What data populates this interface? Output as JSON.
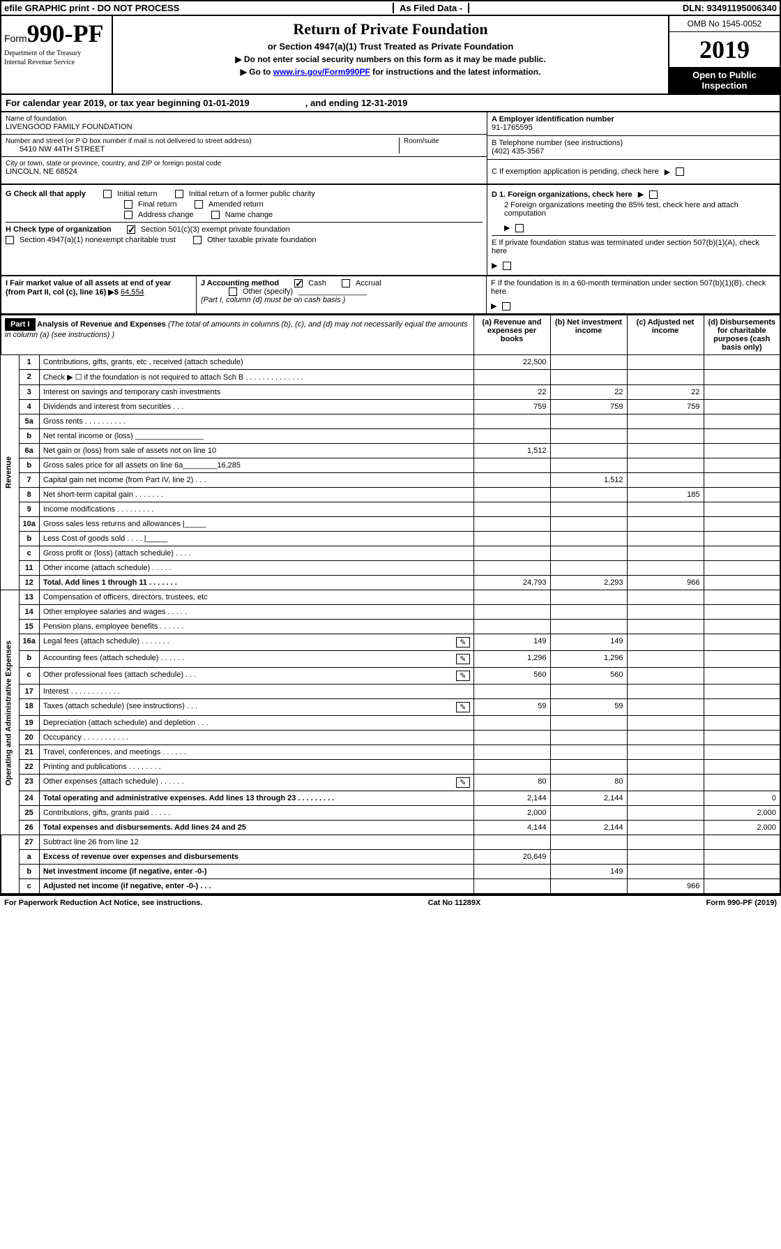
{
  "topbar": {
    "efile": "efile GRAPHIC print - DO NOT PROCESS",
    "filed": "As Filed Data -",
    "dln": "DLN: 93491195006340"
  },
  "header": {
    "form_prefix": "Form",
    "form_number": "990-PF",
    "dept1": "Department of the Treasury",
    "dept2": "Internal Revenue Service",
    "title": "Return of Private Foundation",
    "subtitle": "or Section 4947(a)(1) Trust Treated as Private Foundation",
    "inst1": "▶ Do not enter social security numbers on this form as it may be made public.",
    "inst2_pre": "▶ Go to ",
    "inst2_link": "www.irs.gov/Form990PF",
    "inst2_post": " for instructions and the latest information.",
    "omb": "OMB No 1545-0052",
    "year": "2019",
    "open_public": "Open to Public Inspection"
  },
  "calendar": {
    "text": "For calendar year 2019, or tax year beginning 01-01-2019",
    "end": ", and ending 12-31-2019"
  },
  "entity": {
    "name_label": "Name of foundation",
    "name": "LIVENGOOD FAMILY FOUNDATION",
    "street_label": "Number and street (or P O  box number if mail is not delivered to street address)",
    "room_label": "Room/suite",
    "street": "5410 NW 44TH STREET",
    "city_label": "City or town, state or province, country, and ZIP or foreign postal code",
    "city": "LINCOLN, NE  68524"
  },
  "right": {
    "a_label": "A Employer identification number",
    "a_val": "91-1765595",
    "b_label": "B Telephone number (see instructions)",
    "b_val": "(402) 435-3567",
    "c_label": "C If exemption application is pending, check here",
    "d1": "D 1. Foreign organizations, check here",
    "d2": "2 Foreign organizations meeting the 85% test, check here and attach computation",
    "e": "E  If private foundation status was terminated under section 507(b)(1)(A), check here",
    "f": "F  If the foundation is in a 60-month termination under section 507(b)(1)(B), check here"
  },
  "g": {
    "label": "G Check all that apply",
    "initial": "Initial return",
    "initial_former": "Initial return of a former public charity",
    "final": "Final return",
    "amended": "Amended return",
    "address": "Address change",
    "name": "Name change"
  },
  "h": {
    "label": "H Check type of organization",
    "sec501": "Section 501(c)(3) exempt private foundation",
    "sec4947": "Section 4947(a)(1) nonexempt charitable trust",
    "other": "Other taxable private foundation"
  },
  "i": {
    "label": "I Fair market value of all assets at end of year (from Part II, col  (c), line 16) ▶$",
    "val": "64,554"
  },
  "j": {
    "label": "J Accounting method",
    "cash": "Cash",
    "accrual": "Accrual",
    "other": "Other (specify)",
    "note": "(Part I, column (d) must be on cash basis )"
  },
  "part1": {
    "label": "Part I",
    "title": "Analysis of Revenue and Expenses",
    "title_note": "(The total of amounts in columns (b), (c), and (d) may not necessarily equal the amounts in column (a) (see instructions) )",
    "col_a": "(a) Revenue and expenses per books",
    "col_b": "(b) Net investment income",
    "col_c": "(c) Adjusted net income",
    "col_d": "(d) Disbursements for charitable purposes (cash basis only)",
    "revenue_label": "Revenue",
    "expenses_label": "Operating and Administrative Expenses",
    "rows": [
      {
        "n": "1",
        "d": "Contributions, gifts, grants, etc , received (attach schedule)",
        "a": "22,500",
        "b": "",
        "c": "",
        "dd": ""
      },
      {
        "n": "2",
        "d": "Check ▶ ☐ if the foundation is not required to attach Sch  B    .  .  .  .  .  .  .  .  .  .  .  .  .  .",
        "a": "",
        "b": "",
        "c": "",
        "dd": ""
      },
      {
        "n": "3",
        "d": "Interest on savings and temporary cash investments",
        "a": "22",
        "b": "22",
        "c": "22",
        "dd": ""
      },
      {
        "n": "4",
        "d": "Dividends and interest from securities   .  .  .",
        "a": "759",
        "b": "759",
        "c": "759",
        "dd": ""
      },
      {
        "n": "5a",
        "d": "Gross rents    .  .  .  .  .  .  .  .  .  .",
        "a": "",
        "b": "",
        "c": "",
        "dd": ""
      },
      {
        "n": "b",
        "d": "Net rental income or (loss)  ________________",
        "a": "",
        "b": "",
        "c": "",
        "dd": ""
      },
      {
        "n": "6a",
        "d": "Net gain or (loss) from sale of assets not on line 10",
        "a": "1,512",
        "b": "",
        "c": "",
        "dd": ""
      },
      {
        "n": "b",
        "d": "Gross sales price for all assets on line 6a________16,285",
        "a": "",
        "b": "",
        "c": "",
        "dd": ""
      },
      {
        "n": "7",
        "d": "Capital gain net income (from Part IV, line 2)  .  .  .",
        "a": "",
        "b": "1,512",
        "c": "",
        "dd": ""
      },
      {
        "n": "8",
        "d": "Net short-term capital gain  .  .  .  .  .  .  .",
        "a": "",
        "b": "",
        "c": "185",
        "dd": ""
      },
      {
        "n": "9",
        "d": "Income modifications .  .  .  .  .  .  .  .  .",
        "a": "",
        "b": "",
        "c": "",
        "dd": ""
      },
      {
        "n": "10a",
        "d": "Gross sales less returns and allowances |_____",
        "a": "",
        "b": "",
        "c": "",
        "dd": ""
      },
      {
        "n": "b",
        "d": "Less  Cost of goods sold   .  .  .  .  |_____",
        "a": "",
        "b": "",
        "c": "",
        "dd": ""
      },
      {
        "n": "c",
        "d": "Gross profit or (loss) (attach schedule)   .  .  .  .",
        "a": "",
        "b": "",
        "c": "",
        "dd": ""
      },
      {
        "n": "11",
        "d": "Other income (attach schedule)   .  .  .  .  .",
        "a": "",
        "b": "",
        "c": "",
        "dd": ""
      },
      {
        "n": "12",
        "d": "Total. Add lines 1 through 11  .  .  .  .  .  .  .",
        "a": "24,793",
        "b": "2,293",
        "c": "966",
        "dd": "",
        "bold": true
      }
    ],
    "exp_rows": [
      {
        "n": "13",
        "d": "Compensation of officers, directors, trustees, etc",
        "a": "",
        "b": "",
        "c": "",
        "dd": ""
      },
      {
        "n": "14",
        "d": "Other employee salaries and wages   .  .  .  .  .",
        "a": "",
        "b": "",
        "c": "",
        "dd": ""
      },
      {
        "n": "15",
        "d": "Pension plans, employee benefits .  .  .  .  .  .",
        "a": "",
        "b": "",
        "c": "",
        "dd": ""
      },
      {
        "n": "16a",
        "d": "Legal fees (attach schedule) .  .  .  .  .  .  .",
        "a": "149",
        "b": "149",
        "c": "",
        "dd": "",
        "clip": true
      },
      {
        "n": "b",
        "d": "Accounting fees (attach schedule) .  .  .  .  .  .",
        "a": "1,296",
        "b": "1,296",
        "c": "",
        "dd": "",
        "clip": true
      },
      {
        "n": "c",
        "d": "Other professional fees (attach schedule)   .  .  .",
        "a": "560",
        "b": "560",
        "c": "",
        "dd": "",
        "clip": true
      },
      {
        "n": "17",
        "d": "Interest .  .  .  .  .  .  .  .  .  .  .  .",
        "a": "",
        "b": "",
        "c": "",
        "dd": ""
      },
      {
        "n": "18",
        "d": "Taxes (attach schedule) (see instructions)    .  .  .",
        "a": "59",
        "b": "59",
        "c": "",
        "dd": "",
        "clip": true
      },
      {
        "n": "19",
        "d": "Depreciation (attach schedule) and depletion  .  .  .",
        "a": "",
        "b": "",
        "c": "",
        "dd": ""
      },
      {
        "n": "20",
        "d": "Occupancy  .  .  .  .  .  .  .  .  .  .  .",
        "a": "",
        "b": "",
        "c": "",
        "dd": ""
      },
      {
        "n": "21",
        "d": "Travel, conferences, and meetings .  .  .  .  .  .",
        "a": "",
        "b": "",
        "c": "",
        "dd": ""
      },
      {
        "n": "22",
        "d": "Printing and publications .  .  .  .  .  .  .  .",
        "a": "",
        "b": "",
        "c": "",
        "dd": ""
      },
      {
        "n": "23",
        "d": "Other expenses (attach schedule) .  .  .  .  .  .",
        "a": "80",
        "b": "80",
        "c": "",
        "dd": "",
        "clip": true
      },
      {
        "n": "24",
        "d": "Total operating and administrative expenses. Add lines 13 through 23  .  .  .  .  .  .  .  .  .",
        "a": "2,144",
        "b": "2,144",
        "c": "",
        "dd": "0",
        "bold": true
      },
      {
        "n": "25",
        "d": "Contributions, gifts, grants paid   .  .  .  .  .",
        "a": "2,000",
        "b": "",
        "c": "",
        "dd": "2,000"
      },
      {
        "n": "26",
        "d": "Total expenses and disbursements. Add lines 24 and 25",
        "a": "4,144",
        "b": "2,144",
        "c": "",
        "dd": "2,000",
        "bold": true
      }
    ],
    "bottom_rows": [
      {
        "n": "27",
        "d": "Subtract line 26 from line 12",
        "a": "",
        "b": "",
        "c": "",
        "dd": ""
      },
      {
        "n": "a",
        "d": "Excess of revenue over expenses and disbursements",
        "a": "20,649",
        "b": "",
        "c": "",
        "dd": "",
        "bold": true
      },
      {
        "n": "b",
        "d": "Net investment income (if negative, enter -0-)",
        "a": "",
        "b": "149",
        "c": "",
        "dd": "",
        "bold": true
      },
      {
        "n": "c",
        "d": "Adjusted net income (if negative, enter -0-)  .  .  .",
        "a": "",
        "b": "",
        "c": "966",
        "dd": "",
        "bold": true
      }
    ]
  },
  "footer": {
    "paperwork": "For Paperwork Reduction Act Notice, see instructions.",
    "cat": "Cat  No  11289X",
    "form": "Form 990-PF (2019)"
  },
  "colors": {
    "black": "#000000",
    "white": "#ffffff",
    "link": "#0000ee"
  }
}
